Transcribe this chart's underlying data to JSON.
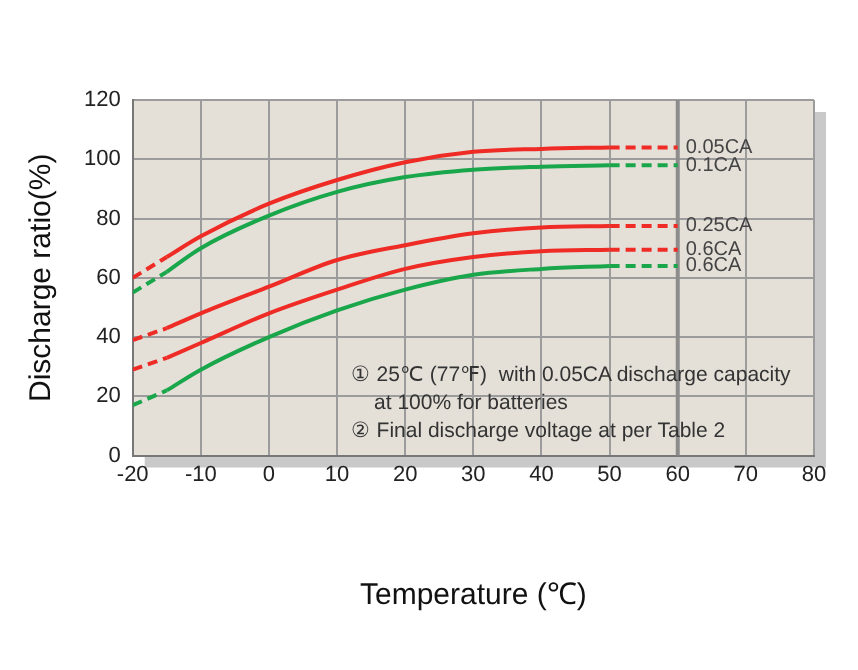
{
  "chart_data": {
    "type": "line",
    "xlabel": "Temperature (℃)",
    "ylabel": "Discharge ratio(%)",
    "xlim": [
      -20,
      80
    ],
    "xticks": [
      -20,
      -10,
      0,
      10,
      20,
      30,
      40,
      50,
      60,
      70,
      80
    ],
    "ylim": [
      0,
      120
    ],
    "yticks": [
      0,
      20,
      40,
      60,
      80,
      100,
      120
    ],
    "grid": true,
    "legend": false,
    "marker": "none",
    "ref_lines": [
      {
        "axis": "x",
        "value": 60,
        "color": "#8c8c8c"
      }
    ],
    "series": [
      {
        "color": "#ee2b24",
        "line_style": "solid",
        "x": [
          -15,
          -10,
          0,
          10,
          20,
          30,
          40,
          50
        ],
        "values": [
          67,
          74,
          85,
          93,
          99,
          102.5,
          103.5,
          104
        ]
      },
      {
        "color": "#ee2b24",
        "line_style": "dashed",
        "x": [
          -20,
          -15
        ],
        "values": [
          60,
          67
        ]
      },
      {
        "name": "0.05CA",
        "color": "#ee2b24",
        "line_style": "dashed",
        "x": [
          50,
          60
        ],
        "values": [
          104,
          104
        ]
      },
      {
        "color": "#1aa64a",
        "line_style": "solid",
        "x": [
          -15,
          -10,
          0,
          10,
          20,
          30,
          40,
          50
        ],
        "values": [
          62,
          70,
          81,
          89,
          94,
          96.5,
          97.5,
          98
        ]
      },
      {
        "color": "#1aa64a",
        "line_style": "dashed",
        "x": [
          -20,
          -15
        ],
        "values": [
          55,
          62
        ]
      },
      {
        "name": "0.1CA",
        "color": "#1aa64a",
        "line_style": "dashed",
        "x": [
          50,
          60
        ],
        "values": [
          98,
          98
        ]
      },
      {
        "color": "#ee2b24",
        "line_style": "solid",
        "x": [
          -15,
          -10,
          0,
          10,
          20,
          30,
          40,
          50
        ],
        "values": [
          43,
          48,
          57,
          66,
          71,
          75,
          77,
          77.5
        ]
      },
      {
        "color": "#ee2b24",
        "line_style": "dashed",
        "x": [
          -20,
          -15
        ],
        "values": [
          39,
          43
        ]
      },
      {
        "name": "0.25CA",
        "color": "#ee2b24",
        "line_style": "dashed",
        "x": [
          50,
          60
        ],
        "values": [
          77.5,
          77.5
        ]
      },
      {
        "color": "#ee2b24",
        "line_style": "solid",
        "x": [
          -15,
          -10,
          0,
          10,
          20,
          30,
          40,
          50
        ],
        "values": [
          33,
          38,
          48,
          56,
          63,
          67,
          69,
          69.5
        ]
      },
      {
        "color": "#ee2b24",
        "line_style": "dashed",
        "x": [
          -20,
          -15
        ],
        "values": [
          29,
          33
        ]
      },
      {
        "name": "0.6CA",
        "color": "#ee2b24",
        "line_style": "dashed",
        "x": [
          50,
          60
        ],
        "values": [
          69.5,
          69.5
        ]
      },
      {
        "color": "#1aa64a",
        "line_style": "solid",
        "x": [
          -15,
          -10,
          0,
          10,
          20,
          30,
          40,
          50
        ],
        "values": [
          22,
          29,
          40,
          49,
          56,
          61,
          63,
          64
        ]
      },
      {
        "color": "#1aa64a",
        "line_style": "dashed",
        "x": [
          -20,
          -15
        ],
        "values": [
          17,
          22
        ]
      },
      {
        "name": "0.6CA",
        "color": "#1aa64a",
        "line_style": "dashed",
        "x": [
          50,
          60
        ],
        "values": [
          64,
          64
        ]
      }
    ],
    "annotations": [
      "① 25℃ (77℉)  with 0.05CA discharge capacity",
      "    at 100% for batteries",
      "② Final discharge voltage at per Table 2"
    ]
  }
}
